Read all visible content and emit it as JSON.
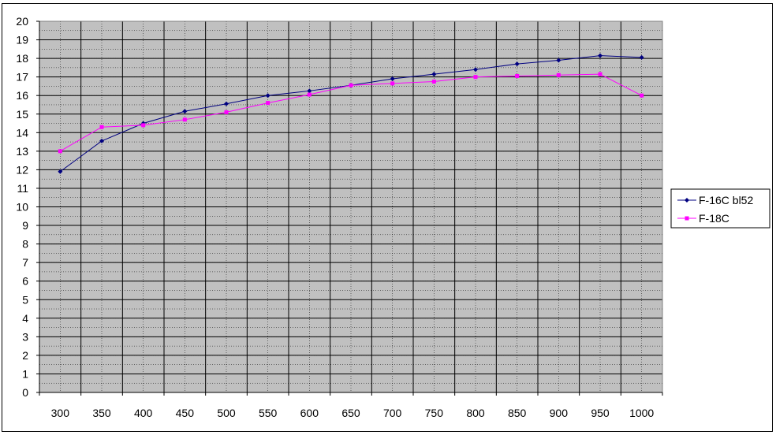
{
  "chart_data": {
    "type": "line",
    "title": "",
    "xlabel": "",
    "ylabel": "",
    "x": [
      300,
      350,
      400,
      450,
      500,
      550,
      600,
      650,
      700,
      750,
      800,
      850,
      900,
      950,
      1000
    ],
    "x_tick_labels": [
      "300",
      "350",
      "400",
      "450",
      "500",
      "550",
      "600",
      "650",
      "700",
      "750",
      "800",
      "850",
      "900",
      "950",
      "1000"
    ],
    "y_tick_labels": [
      "0",
      "1",
      "2",
      "3",
      "4",
      "5",
      "6",
      "7",
      "8",
      "9",
      "10",
      "11",
      "12",
      "13",
      "14",
      "15",
      "16",
      "17",
      "18",
      "19",
      "20"
    ],
    "ylim": [
      0,
      20
    ],
    "y_step": 1,
    "x_minor_step": 25,
    "y_minor_step": 0.5,
    "grid": true,
    "plot_background": "#c0c0c0",
    "grid_color": "#000000",
    "legend_position": "right",
    "series": [
      {
        "name": "F-16C bl52",
        "color": "#000080",
        "marker": "diamond",
        "values": [
          11.9,
          13.55,
          14.5,
          15.15,
          15.55,
          16.0,
          16.25,
          16.55,
          16.9,
          17.15,
          17.4,
          17.7,
          17.9,
          18.15,
          18.05
        ]
      },
      {
        "name": "F-18C",
        "color": "#ff00ff",
        "marker": "square",
        "values": [
          13.0,
          14.3,
          14.4,
          14.7,
          15.1,
          15.6,
          16.05,
          16.55,
          16.65,
          16.75,
          17.0,
          17.05,
          17.1,
          17.15,
          16.0
        ]
      }
    ]
  }
}
